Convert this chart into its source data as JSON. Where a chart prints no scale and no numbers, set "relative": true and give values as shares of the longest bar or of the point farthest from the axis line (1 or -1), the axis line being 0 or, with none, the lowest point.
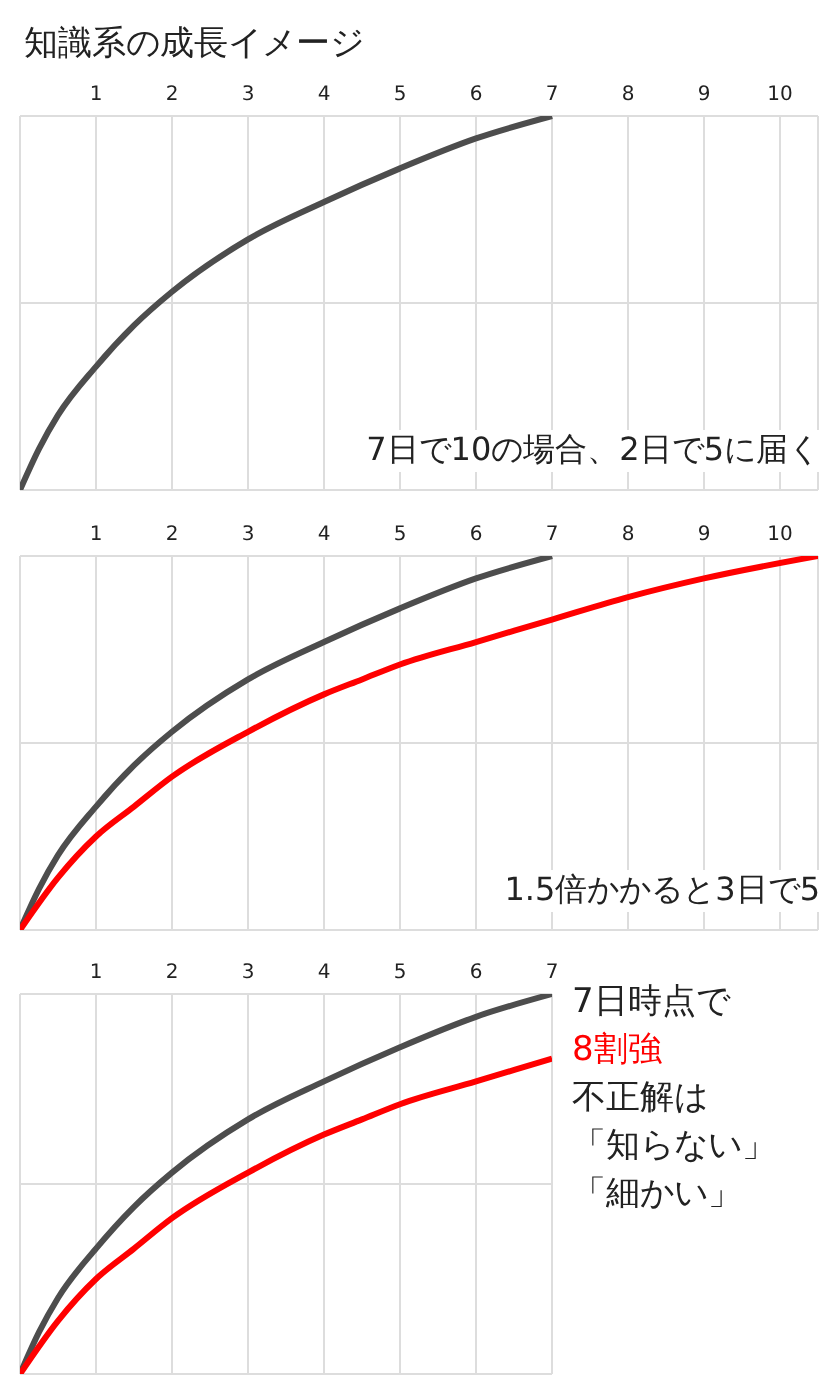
{
  "chart_data": [
    {
      "type": "line",
      "title": "知識系の成長イメージ",
      "relative": true,
      "xlim": [
        0,
        10.5
      ],
      "xticks": [
        1,
        2,
        3,
        4,
        5,
        6,
        7,
        8,
        9,
        10
      ],
      "grid": true,
      "marker": "none",
      "series": [
        {
          "color": "#4d4d4d",
          "x": [
            0,
            0.25,
            0.5,
            1,
            1.5,
            2,
            3,
            4,
            5,
            6,
            7
          ],
          "values": [
            0,
            0.11,
            0.2,
            0.33,
            0.44,
            0.53,
            0.67,
            0.77,
            0.86,
            0.94,
            1
          ]
        }
      ],
      "annotations": [
        "7日で10の場合、2日で5に届く"
      ]
    },
    {
      "type": "line",
      "relative": true,
      "xlim": [
        0,
        10.5
      ],
      "xticks": [
        1,
        2,
        3,
        4,
        5,
        6,
        7,
        8,
        9,
        10
      ],
      "grid": true,
      "marker": "none",
      "series": [
        {
          "color": "#4d4d4d",
          "x": [
            0,
            0.25,
            0.5,
            1,
            1.5,
            2,
            3,
            4,
            5,
            6,
            7
          ],
          "values": [
            0,
            0.11,
            0.2,
            0.33,
            0.44,
            0.53,
            0.67,
            0.77,
            0.86,
            0.94,
            1
          ]
        },
        {
          "color": "#ff0000",
          "x": [
            0,
            0.5,
            1,
            1.5,
            2,
            3,
            4,
            4.5,
            5,
            6,
            7,
            8,
            9,
            10.5
          ],
          "values": [
            0,
            0.14,
            0.25,
            0.33,
            0.41,
            0.53,
            0.63,
            0.67,
            0.71,
            0.77,
            0.83,
            0.89,
            0.94,
            1
          ]
        }
      ],
      "annotations": [
        "1.5倍かかると3日で5"
      ]
    },
    {
      "type": "line",
      "relative": true,
      "xlim": [
        0,
        7
      ],
      "xticks": [
        1,
        2,
        3,
        4,
        5,
        6,
        7
      ],
      "grid": true,
      "marker": "none",
      "series": [
        {
          "color": "#4d4d4d",
          "x": [
            0,
            0.25,
            0.5,
            1,
            1.5,
            2,
            3,
            4,
            5,
            6,
            7
          ],
          "values": [
            0,
            0.11,
            0.2,
            0.33,
            0.44,
            0.53,
            0.67,
            0.77,
            0.86,
            0.94,
            1
          ]
        },
        {
          "color": "#ff0000",
          "x": [
            0,
            0.5,
            1,
            1.5,
            2,
            3,
            4,
            4.5,
            5,
            6,
            7
          ],
          "values": [
            0,
            0.14,
            0.25,
            0.33,
            0.41,
            0.53,
            0.63,
            0.67,
            0.71,
            0.77,
            0.83
          ]
        }
      ],
      "annotations": [
        "7日時点で",
        {
          "text": "8割強",
          "x": 7,
          "y": 0.83
        },
        "不正解は",
        "「知らない」",
        "「細かい」"
      ]
    }
  ]
}
